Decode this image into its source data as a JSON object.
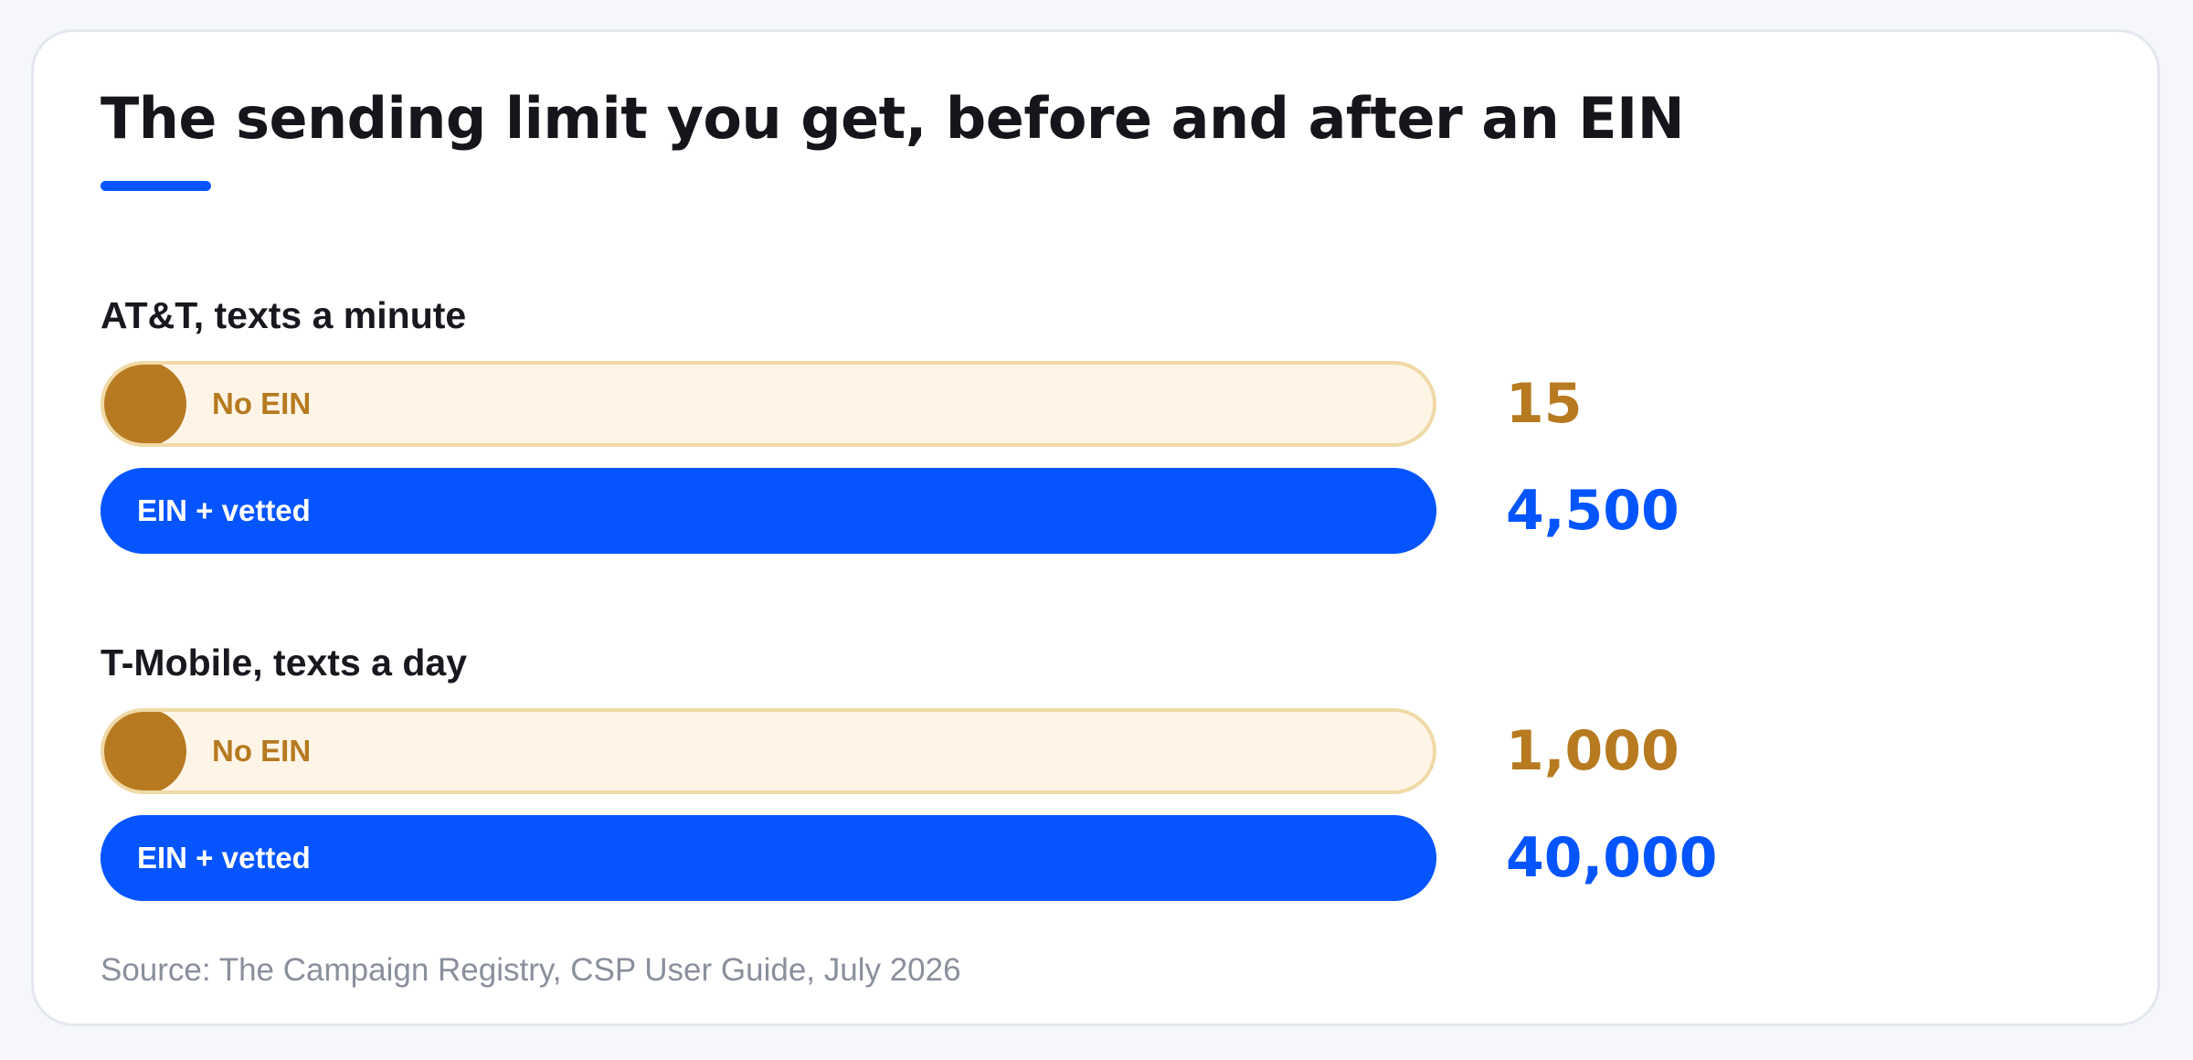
{
  "chart_data": {
    "type": "bar",
    "title": "The sending limit you get, before and after an EIN",
    "source": "Source: The Campaign Registry, CSP User Guide, July 2026",
    "colors": {
      "no_ein": "#b77a20",
      "no_ein_track": "#fef5e7",
      "ein_vetted": "#0455ff",
      "accent_rule": "#0455ff"
    },
    "groups": [
      {
        "title": "AT&T, texts a minute",
        "bars": [
          {
            "label": "No EIN",
            "value": 15,
            "value_label": "15",
            "kind": "low"
          },
          {
            "label": "EIN + vetted",
            "value": 4500,
            "value_label": "4,500",
            "kind": "high"
          }
        ]
      },
      {
        "title": "T-Mobile, texts a day",
        "bars": [
          {
            "label": "No EIN",
            "value": 1000,
            "value_label": "1,000",
            "kind": "low"
          },
          {
            "label": "EIN + vetted",
            "value": 40000,
            "value_label": "40,000",
            "kind": "high"
          }
        ]
      }
    ]
  }
}
